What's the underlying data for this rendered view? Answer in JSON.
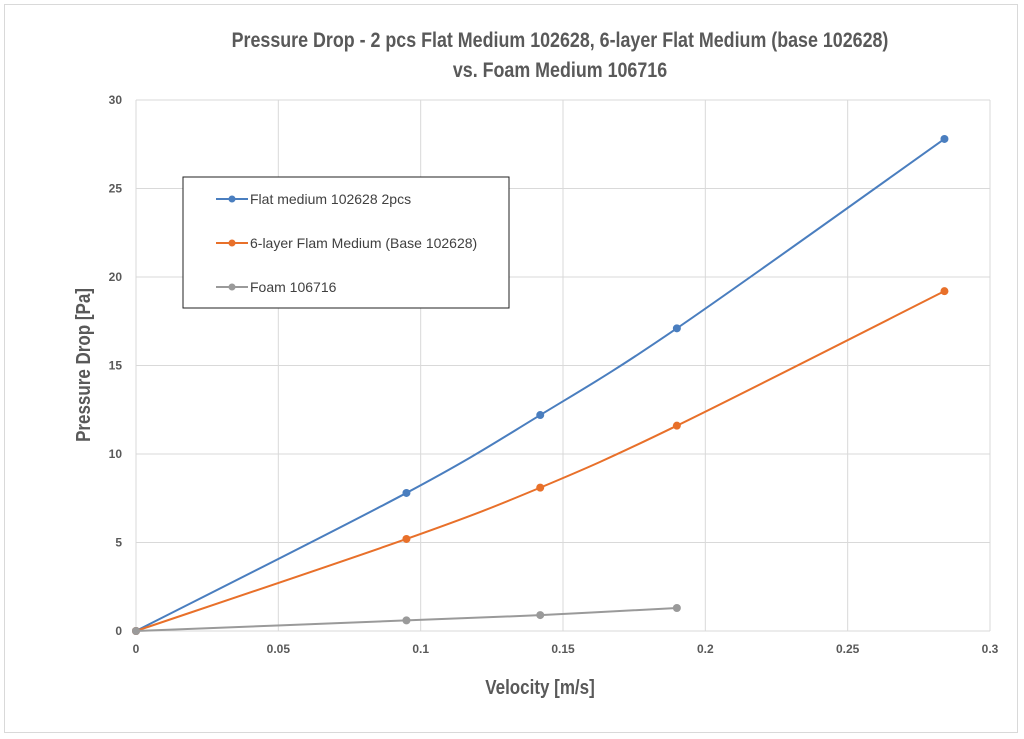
{
  "chart_data": {
    "type": "line",
    "title_line1": "Pressure Drop - 2 pcs Flat Medium 102628, 6-layer Flat Medium (base 102628)",
    "title_line2": "vs. Foam Medium 106716",
    "xlabel": "Velocity [m/s]",
    "ylabel": "Pressure Drop [Pa]",
    "xlim": [
      0,
      0.3
    ],
    "ylim": [
      0,
      30
    ],
    "xticks": [
      "0",
      "0.05",
      "0.1",
      "0.15",
      "0.2",
      "0.25",
      "0.3"
    ],
    "yticks": [
      "0",
      "5",
      "10",
      "15",
      "20",
      "25",
      "30"
    ],
    "grid": true,
    "legend_position": "upper-left (inside)",
    "smooth": true,
    "series": [
      {
        "name": "Flat medium 102628 2pcs",
        "color": "#4a7ebf",
        "x": [
          0,
          0.095,
          0.142,
          0.19,
          0.284
        ],
        "y": [
          0,
          7.8,
          12.2,
          17.1,
          27.8
        ]
      },
      {
        "name": "6-layer Flam Medium (Base 102628)",
        "color": "#e8702a",
        "x": [
          0,
          0.095,
          0.142,
          0.19,
          0.284
        ],
        "y": [
          0,
          5.2,
          8.1,
          11.6,
          19.2
        ]
      },
      {
        "name": "Foam 106716",
        "color": "#9a9a9a",
        "x": [
          0,
          0.095,
          0.142,
          0.19
        ],
        "y": [
          0,
          0.6,
          0.9,
          1.3
        ]
      }
    ]
  }
}
